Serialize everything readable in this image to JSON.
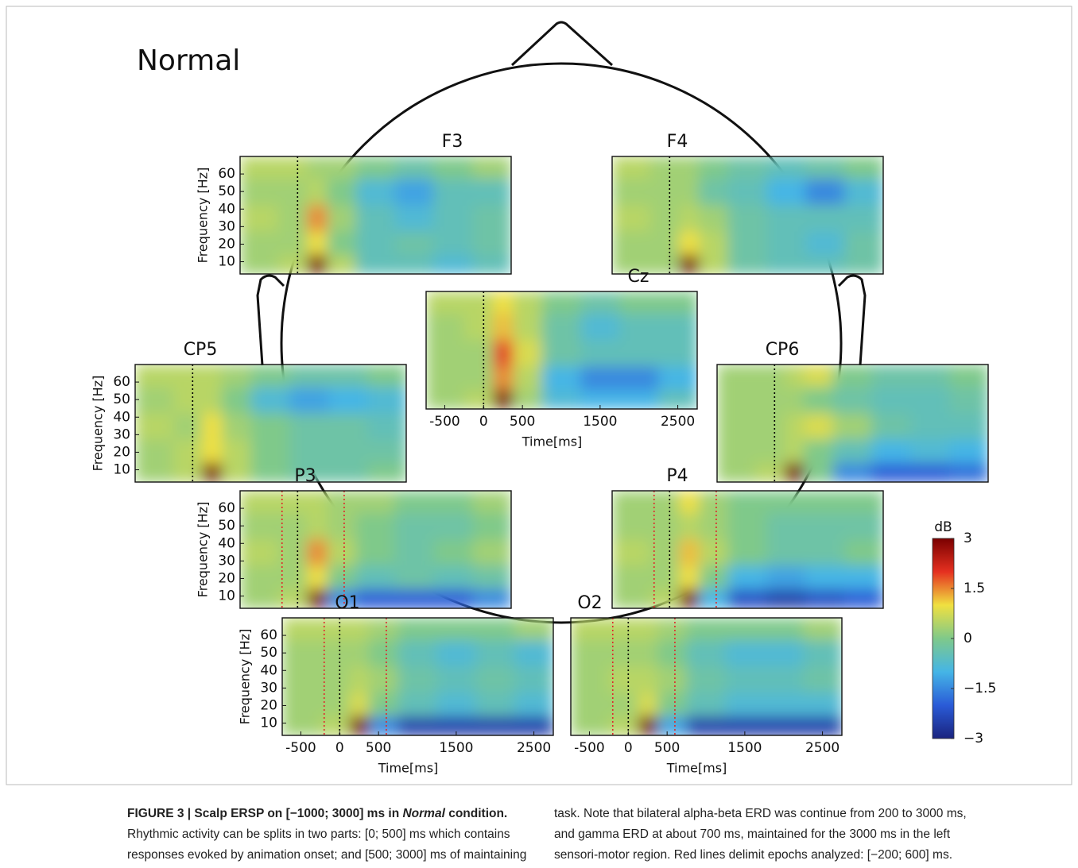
{
  "figure_title": "Normal",
  "chart_data": [
    {
      "type": "heatmap",
      "title": "F3",
      "ylabel": "Frequency [Hz]",
      "xlim": [
        -740,
        2750
      ],
      "ylim": [
        3,
        70
      ],
      "yticks": [
        10,
        20,
        30,
        40,
        50,
        60
      ],
      "x": [
        -500,
        0,
        250,
        500,
        1000,
        1500,
        2000,
        2500
      ],
      "y": [
        8,
        20,
        35,
        50,
        65
      ],
      "values": [
        [
          0.3,
          0.5,
          3,
          0.5,
          -0.5,
          -0.5,
          -0.8,
          -0.5
        ],
        [
          0.3,
          0.3,
          1,
          0,
          -0.5,
          -0.3,
          -0.5,
          -0.3
        ],
        [
          0.5,
          0.3,
          1.5,
          0.3,
          -0.5,
          -0.8,
          -0.5,
          -0.3
        ],
        [
          0.3,
          0.3,
          0.5,
          0,
          -0.8,
          -1.2,
          -0.5,
          -0.5
        ],
        [
          0.5,
          0.5,
          0.3,
          0.3,
          0,
          -0.3,
          0,
          0.3
        ]
      ],
      "vlines": [
        {
          "value": 0,
          "color": "#000000"
        }
      ]
    },
    {
      "type": "heatmap",
      "title": "F4",
      "xlim": [
        -740,
        2750
      ],
      "ylim": [
        3,
        70
      ],
      "x": [
        -500,
        0,
        250,
        500,
        1000,
        1500,
        2000,
        2500
      ],
      "y": [
        8,
        20,
        35,
        50,
        65
      ],
      "values": [
        [
          0.3,
          0.3,
          3,
          0.5,
          -0.3,
          -0.5,
          -0.5,
          -0.3
        ],
        [
          0.3,
          0.3,
          1,
          0.5,
          -0.3,
          -0.5,
          -0.8,
          -0.3
        ],
        [
          0.5,
          0.3,
          0.5,
          0.3,
          -0.3,
          -0.5,
          -0.5,
          -0.5
        ],
        [
          0.3,
          0.3,
          0.3,
          -0.3,
          -0.5,
          -1,
          -1.5,
          -0.8
        ],
        [
          0.5,
          0.3,
          0.3,
          0,
          -0.3,
          -0.5,
          -0.3,
          0
        ]
      ],
      "vlines": [
        {
          "value": 0,
          "color": "#000000"
        }
      ]
    },
    {
      "type": "heatmap",
      "title": "Cz",
      "xlabel": "Time[ms]",
      "xlim": [
        -740,
        2750
      ],
      "ylim": [
        3,
        70
      ],
      "xticks": [
        -500,
        0,
        500,
        1500,
        2500
      ],
      "x": [
        -500,
        0,
        250,
        500,
        1000,
        1500,
        2000,
        2500
      ],
      "y": [
        8,
        20,
        35,
        50,
        65
      ],
      "values": [
        [
          0.3,
          0.5,
          3,
          0.3,
          -0.8,
          -1,
          -1,
          -0.5
        ],
        [
          0.3,
          0.3,
          1.5,
          0.5,
          -1,
          -1.5,
          -1.5,
          -1
        ],
        [
          0.3,
          0.3,
          2,
          0.8,
          -0.3,
          -0.5,
          -0.5,
          -0.5
        ],
        [
          0.3,
          0.5,
          1.2,
          0.5,
          -0.3,
          -0.8,
          -0.5,
          -0.5
        ],
        [
          0.5,
          0.5,
          1,
          0.5,
          0,
          -0.3,
          0,
          0
        ]
      ],
      "vlines": [
        {
          "value": 0,
          "color": "#000000"
        }
      ]
    },
    {
      "type": "heatmap",
      "title": "CP5",
      "ylabel": "Frequency [Hz]",
      "xlim": [
        -740,
        2750
      ],
      "ylim": [
        3,
        70
      ],
      "yticks": [
        10,
        20,
        30,
        40,
        50,
        60
      ],
      "x": [
        -500,
        0,
        250,
        500,
        1000,
        1500,
        2000,
        2500
      ],
      "y": [
        8,
        20,
        35,
        50,
        65
      ],
      "values": [
        [
          0.3,
          0.5,
          3,
          0.5,
          0,
          -0.3,
          -0.3,
          0
        ],
        [
          0.3,
          0.5,
          1,
          0.5,
          0,
          -0.3,
          -0.3,
          -0.3
        ],
        [
          0.5,
          0.3,
          1,
          0.3,
          0,
          -0.3,
          -0.3,
          -0.5
        ],
        [
          0.3,
          0.5,
          0.5,
          0,
          -0.8,
          -1.2,
          -1,
          -0.8
        ],
        [
          0.5,
          0.5,
          0.5,
          0.3,
          0,
          -0.3,
          -0.3,
          0
        ]
      ],
      "vlines": [
        {
          "value": 0,
          "color": "#000000"
        }
      ]
    },
    {
      "type": "heatmap",
      "title": "CP6",
      "xlim": [
        -740,
        2750
      ],
      "ylim": [
        3,
        70
      ],
      "x": [
        -500,
        0,
        250,
        500,
        1000,
        1500,
        2000,
        2500
      ],
      "y": [
        8,
        20,
        35,
        50,
        65
      ],
      "values": [
        [
          0.3,
          0.5,
          3,
          0,
          -1.5,
          -2,
          -2,
          -1.8
        ],
        [
          0.3,
          0.3,
          0.5,
          0,
          -0.5,
          -1,
          -0.8,
          -1
        ],
        [
          0.3,
          0.3,
          0.5,
          0.8,
          0.3,
          -0.3,
          -0.5,
          -0.5
        ],
        [
          0.3,
          0.3,
          0.3,
          0,
          -0.3,
          -0.5,
          -0.5,
          -0.3
        ],
        [
          0.3,
          0.3,
          0.5,
          0.8,
          0,
          -0.3,
          -0.3,
          0
        ]
      ],
      "vlines": [
        {
          "value": 0,
          "color": "#000000"
        }
      ]
    },
    {
      "type": "heatmap",
      "title": "P3",
      "ylabel": "Frequency [Hz]",
      "xlim": [
        -740,
        2750
      ],
      "ylim": [
        3,
        70
      ],
      "yticks": [
        10,
        20,
        30,
        40,
        50,
        60
      ],
      "x": [
        -500,
        0,
        250,
        500,
        1000,
        1500,
        2000,
        2500
      ],
      "y": [
        8,
        20,
        35,
        50,
        65
      ],
      "values": [
        [
          0.3,
          0.5,
          3,
          -1.5,
          -2,
          -2,
          -2,
          -1.5
        ],
        [
          0.3,
          0.3,
          1,
          0,
          -0.5,
          -0.3,
          -0.5,
          -0.3
        ],
        [
          0.5,
          0.3,
          1.5,
          0.5,
          0,
          -0.3,
          0,
          0.3
        ],
        [
          0.3,
          0.3,
          0.5,
          0.3,
          0,
          -0.3,
          -0.3,
          0
        ],
        [
          0.5,
          0.5,
          0.5,
          0.3,
          0.3,
          0,
          0,
          0.3
        ]
      ],
      "vlines": [
        {
          "value": -200,
          "color": "#e0262b"
        },
        {
          "value": 0,
          "color": "#000000"
        },
        {
          "value": 600,
          "color": "#e0262b"
        }
      ]
    },
    {
      "type": "heatmap",
      "title": "P4",
      "xlim": [
        -740,
        2750
      ],
      "ylim": [
        3,
        70
      ],
      "x": [
        -500,
        0,
        250,
        500,
        1000,
        1500,
        2000,
        2500
      ],
      "y": [
        8,
        20,
        35,
        50,
        65
      ],
      "values": [
        [
          0.3,
          0.5,
          3,
          -1,
          -2.2,
          -2.5,
          -2.2,
          -2
        ],
        [
          0.3,
          0.3,
          1,
          0,
          -1,
          -1.2,
          -1,
          -1
        ],
        [
          0.5,
          0.3,
          1.2,
          0.5,
          0,
          -0.3,
          -0.3,
          0
        ],
        [
          0.3,
          0.3,
          0.5,
          0.3,
          0,
          -0.3,
          -0.3,
          -0.3
        ],
        [
          0.3,
          0.3,
          1,
          0.3,
          0,
          0,
          0,
          0
        ]
      ],
      "vlines": [
        {
          "value": -200,
          "color": "#e0262b"
        },
        {
          "value": 0,
          "color": "#000000"
        },
        {
          "value": 600,
          "color": "#e0262b"
        }
      ]
    },
    {
      "type": "heatmap",
      "title": "O1",
      "xlabel": "Time[ms]",
      "ylabel": "Frequency [Hz]",
      "xlim": [
        -740,
        2750
      ],
      "ylim": [
        3,
        70
      ],
      "xticks": [
        -500,
        0,
        500,
        1500,
        2500
      ],
      "yticks": [
        10,
        20,
        30,
        40,
        50,
        60
      ],
      "x": [
        -500,
        0,
        250,
        500,
        1000,
        1500,
        2000,
        2500
      ],
      "y": [
        8,
        20,
        35,
        50,
        65
      ],
      "values": [
        [
          0.3,
          0.5,
          3,
          -1.5,
          -2.5,
          -2.5,
          -2.5,
          -2.5
        ],
        [
          0.3,
          0.3,
          0.8,
          0,
          -0.5,
          -0.8,
          -0.5,
          -0.8
        ],
        [
          0.3,
          0.3,
          0.5,
          0.3,
          -0.3,
          -0.5,
          -0.3,
          -0.5
        ],
        [
          0.3,
          0.3,
          0.3,
          0,
          -0.5,
          -0.8,
          -0.5,
          -0.8
        ],
        [
          0.5,
          0.5,
          0.5,
          0.3,
          0,
          0,
          0,
          0.3
        ]
      ],
      "vlines": [
        {
          "value": -200,
          "color": "#e0262b"
        },
        {
          "value": 0,
          "color": "#000000"
        },
        {
          "value": 600,
          "color": "#e0262b"
        }
      ]
    },
    {
      "type": "heatmap",
      "title": "O2",
      "xlabel": "Time[ms]",
      "xlim": [
        -740,
        2750
      ],
      "ylim": [
        3,
        70
      ],
      "xticks": [
        -500,
        0,
        500,
        1500,
        2500
      ],
      "x": [
        -500,
        0,
        250,
        500,
        1000,
        1500,
        2000,
        2500
      ],
      "y": [
        8,
        20,
        35,
        50,
        65
      ],
      "values": [
        [
          0.3,
          0.5,
          3,
          -1.2,
          -2.5,
          -2.5,
          -2.5,
          -2.5
        ],
        [
          0.3,
          0.3,
          0.8,
          0,
          -0.5,
          -0.8,
          -0.8,
          -0.8
        ],
        [
          0.3,
          0.5,
          0.5,
          0.3,
          -0.3,
          -0.5,
          -0.5,
          -0.3
        ],
        [
          0.3,
          0.3,
          0.3,
          0,
          -0.5,
          -0.8,
          -0.8,
          -0.5
        ],
        [
          0.5,
          0.5,
          0.5,
          0.3,
          0,
          0,
          0,
          0.3
        ]
      ],
      "vlines": [
        {
          "value": -200,
          "color": "#e0262b"
        },
        {
          "value": 0,
          "color": "#000000"
        },
        {
          "value": 600,
          "color": "#e0262b"
        }
      ]
    },
    {
      "type": "colorbar",
      "title": "dB",
      "ylim": [
        -3,
        3
      ],
      "yticks": [
        3,
        1.5,
        0,
        {
          "value": -1.5,
          "label": "−1.5"
        },
        {
          "value": -3,
          "label": "−3"
        }
      ],
      "colormap": [
        "#1a237e",
        "#2a5bd7",
        "#45b5e6",
        "#7fc98a",
        "#f0e040",
        "#e53020",
        "#7a0000"
      ]
    }
  ],
  "caption": {
    "title_pre": "FIGURE 3 | Scalp ERSP on [−1000; 3000] ms in ",
    "title_italic": "Normal",
    "title_post": " condition.",
    "left_lines": [
      "Rhythmic activity can be splits in two parts: [0; 500] ms which contains",
      "responses evoked by animation onset; and [500; 3000] ms of maintaining"
    ],
    "right_lines": [
      "task. Note that bilateral alpha-beta ERD was continue from 200 to 3000 ms,",
      "and gamma ERD at about 700 ms, maintained for the 3000 ms in the left",
      "sensori-motor region. Red lines delimit epochs analyzed: [−200; 600] ms."
    ]
  }
}
